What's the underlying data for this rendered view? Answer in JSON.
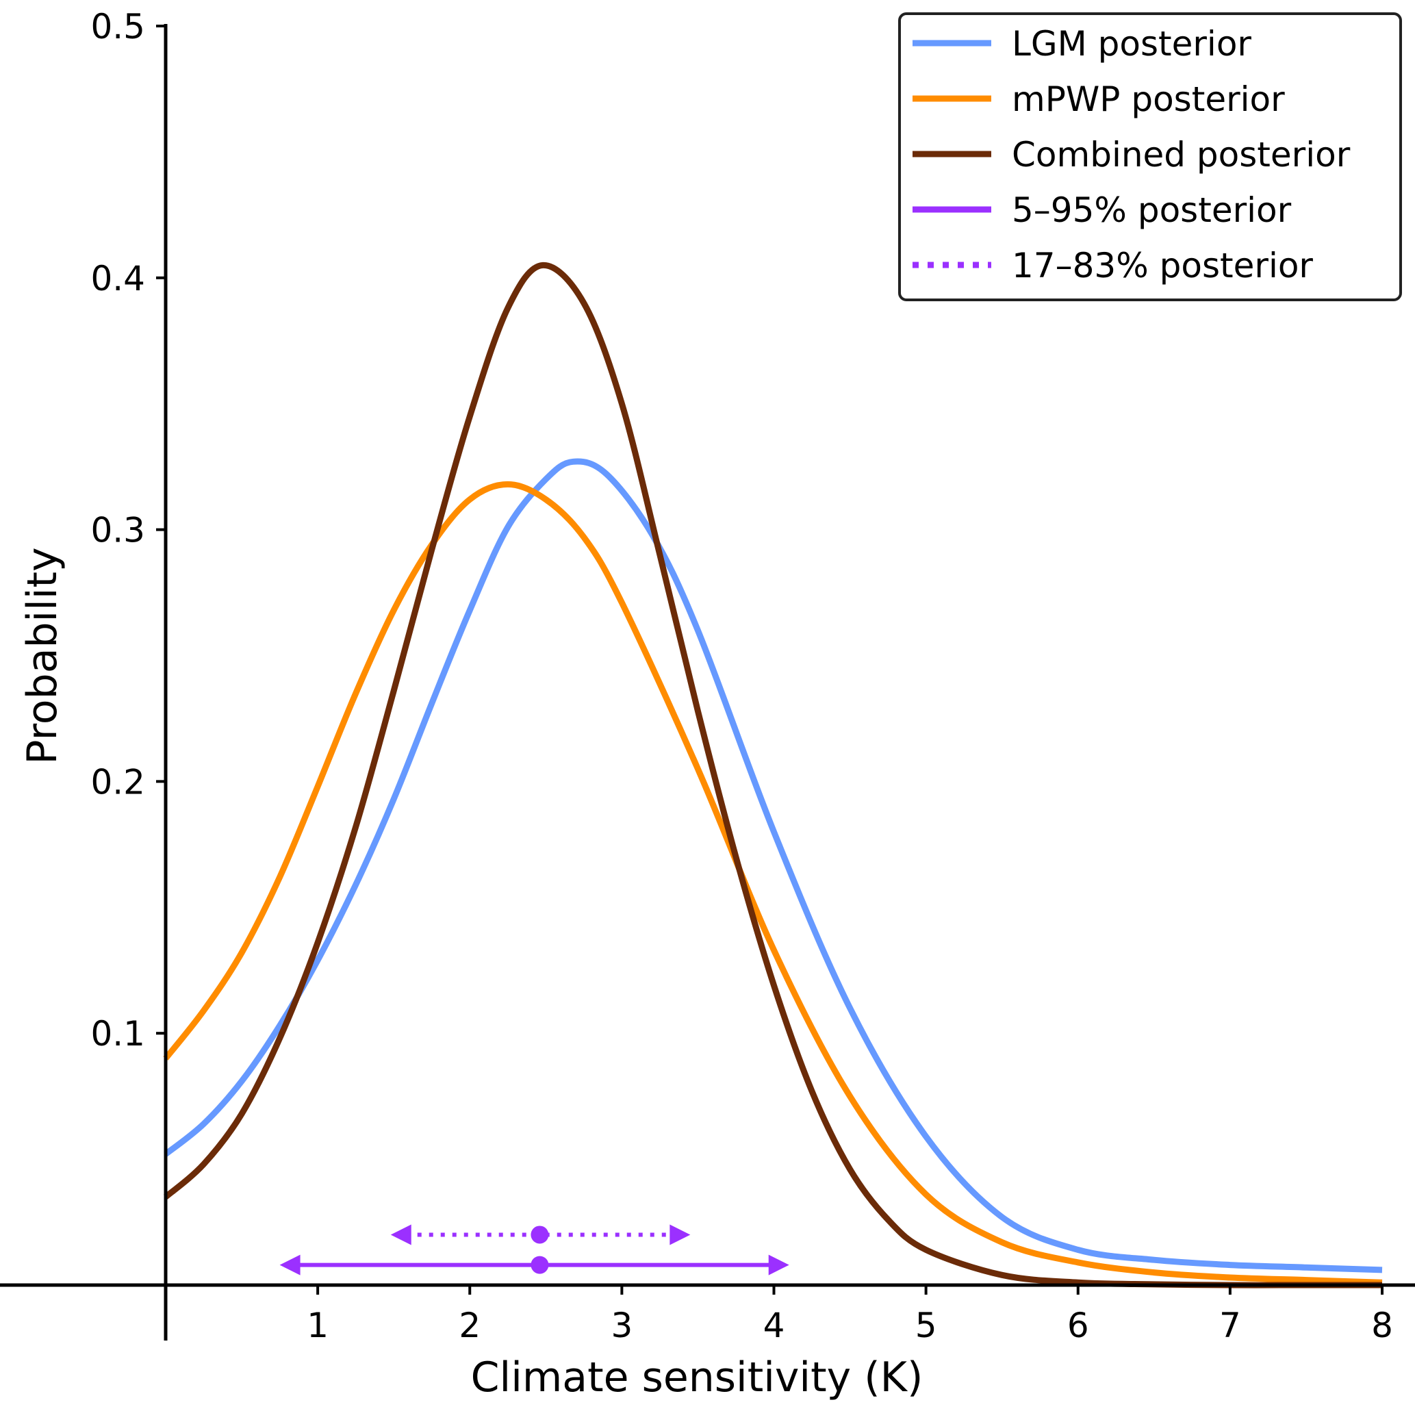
{
  "chart_data": {
    "type": "line",
    "title": "",
    "xlabel": "Climate sensitivity (K)",
    "ylabel": "Probability",
    "xlim": [
      0,
      8
    ],
    "ylim": [
      0,
      0.5
    ],
    "xticks": [
      "1",
      "2",
      "3",
      "4",
      "5",
      "6",
      "7",
      "8"
    ],
    "yticks": [
      "0.1",
      "0.2",
      "0.3",
      "0.4",
      "0.5"
    ],
    "legend_position": "top-right",
    "grid": false,
    "series": [
      {
        "name": "LGM posterior",
        "color": "#6699ff",
        "x": [
          0.0,
          0.25,
          0.5,
          0.75,
          1.0,
          1.25,
          1.5,
          1.75,
          2.0,
          2.25,
          2.5,
          2.68,
          2.9,
          3.2,
          3.5,
          4.0,
          4.5,
          5.0,
          5.5,
          6.0,
          6.5,
          7.0,
          7.5,
          8.0
        ],
        "y": [
          0.052,
          0.064,
          0.081,
          0.103,
          0.129,
          0.159,
          0.193,
          0.231,
          0.268,
          0.301,
          0.32,
          0.327,
          0.322,
          0.298,
          0.26,
          0.18,
          0.11,
          0.059,
          0.027,
          0.014,
          0.01,
          0.008,
          0.007,
          0.006
        ]
      },
      {
        "name": "mPWP posterior",
        "color": "#ff8c00",
        "x": [
          0.0,
          0.25,
          0.5,
          0.75,
          1.0,
          1.25,
          1.5,
          1.75,
          2.0,
          2.25,
          2.5,
          2.75,
          3.0,
          3.5,
          4.0,
          4.5,
          5.0,
          5.5,
          6.0,
          6.5,
          7.0,
          7.5,
          8.0
        ],
        "y": [
          0.09,
          0.109,
          0.132,
          0.162,
          0.198,
          0.235,
          0.268,
          0.294,
          0.312,
          0.318,
          0.312,
          0.297,
          0.271,
          0.205,
          0.133,
          0.075,
          0.036,
          0.017,
          0.009,
          0.005,
          0.003,
          0.002,
          0.001
        ]
      },
      {
        "name": "Combined posterior",
        "color": "#6b2b08",
        "x": [
          0.0,
          0.25,
          0.5,
          0.75,
          1.0,
          1.25,
          1.5,
          1.75,
          2.0,
          2.25,
          2.48,
          2.75,
          3.0,
          3.25,
          3.5,
          3.75,
          4.0,
          4.25,
          4.5,
          4.75,
          5.0,
          5.5,
          6.0,
          6.5,
          7.0,
          7.5,
          8.0
        ],
        "y": [
          0.035,
          0.048,
          0.068,
          0.098,
          0.136,
          0.182,
          0.236,
          0.292,
          0.345,
          0.388,
          0.405,
          0.39,
          0.35,
          0.29,
          0.228,
          0.17,
          0.119,
          0.077,
          0.046,
          0.026,
          0.014,
          0.004,
          0.001,
          0.0003,
          0.0,
          0.0,
          0.0
        ]
      }
    ],
    "ranges": [
      {
        "name": "5–95% posterior",
        "color": "#9b30ff",
        "style": "solid",
        "low": 0.75,
        "median": 2.46,
        "high": 4.1,
        "y": 0.008
      },
      {
        "name": "17–83% posterior",
        "color": "#9b30ff",
        "style": "dotted",
        "low": 1.48,
        "median": 2.46,
        "high": 3.45,
        "y": 0.02
      }
    ]
  }
}
